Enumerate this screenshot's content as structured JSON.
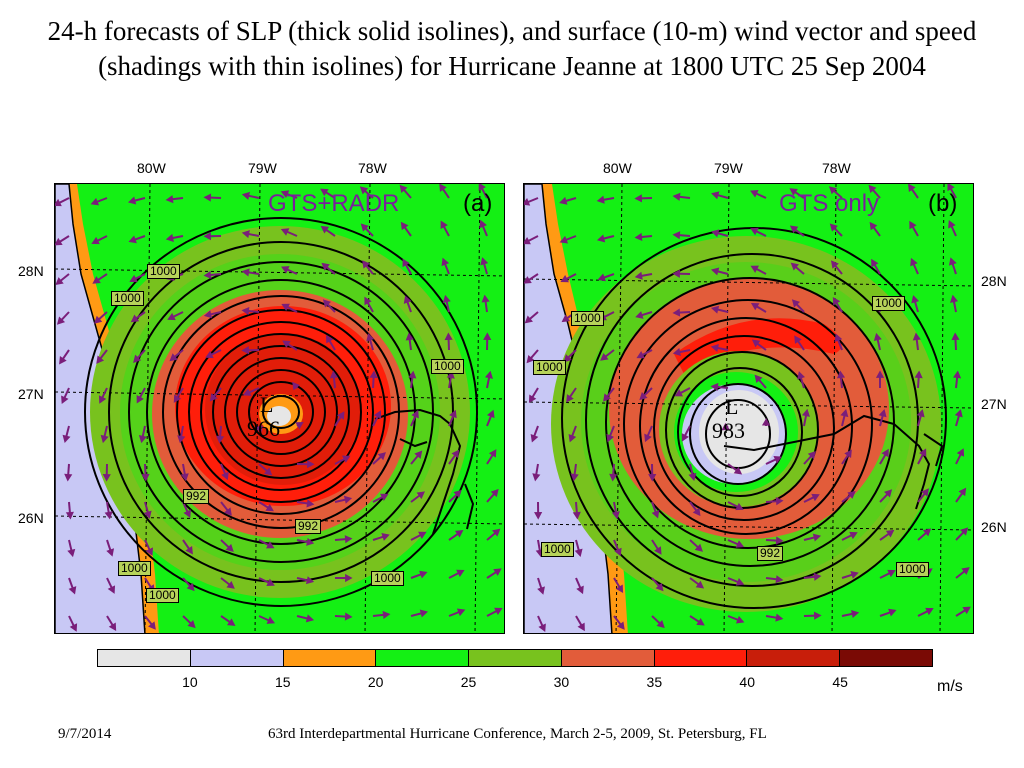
{
  "title": "24-h forecasts of SLP (thick solid isolines), and surface (10-m) wind vector and speed (shadings with thin isolines) for Hurricane Jeanne at 1800 UTC 25 Sep 2004",
  "longitude_labels": [
    "80W",
    "79W",
    "78W"
  ],
  "latitude_labels": [
    "28N",
    "27N",
    "26N"
  ],
  "panels": [
    {
      "id": "a",
      "label": "GTS+RADR",
      "tag": "(a)",
      "center_symbol": "L",
      "center_pressure": "966",
      "isobar_labels": [
        "1000",
        "1000",
        "1000",
        "992",
        "992",
        "1000",
        "1000",
        "1000"
      ]
    },
    {
      "id": "b",
      "label": "GTS only",
      "tag": "(b)",
      "center_symbol": "L",
      "center_pressure": "983",
      "isobar_labels": [
        "1000",
        "1000",
        "1000",
        "992",
        "1000",
        "1000"
      ]
    }
  ],
  "colorbar": {
    "ticks": [
      "10",
      "15",
      "20",
      "25",
      "30",
      "35",
      "40",
      "45"
    ],
    "unit": "m/s",
    "colors": [
      "#e6e6e6",
      "#c8c8f5",
      "#ff9a14",
      "#14f014",
      "#78c21e",
      "#e25c3a",
      "#ff1e0a",
      "#c81e0a",
      "#7a0a05"
    ]
  },
  "map_colors": {
    "land": "#c8c8f5",
    "orange": "#ff9a14",
    "green": "#14f014",
    "olive": "#78c21e",
    "red1": "#e25c3a",
    "red2": "#ff1e0a",
    "red3": "#c81e0a",
    "calm": "#e6e6e6",
    "arrow": "#7a1e7a"
  },
  "footer": {
    "date": "9/7/2014",
    "conference": "63rd Interdepartmental Hurricane Conference, March 2-5, 2009, St. Petersburg, FL"
  }
}
